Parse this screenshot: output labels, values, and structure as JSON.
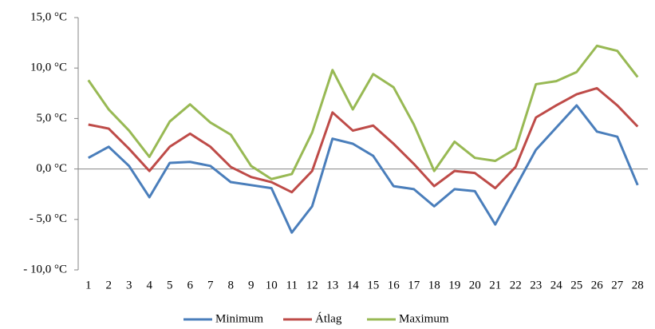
{
  "chart_data": {
    "type": "line",
    "categories": [
      "1",
      "2",
      "3",
      "4",
      "5",
      "6",
      "7",
      "8",
      "9",
      "10",
      "11",
      "12",
      "13",
      "14",
      "15",
      "16",
      "17",
      "18",
      "19",
      "20",
      "21",
      "22",
      "23",
      "24",
      "25",
      "26",
      "27",
      "28"
    ],
    "series": [
      {
        "name": "Minimum",
        "color": "#4a7ebb",
        "values": [
          1.1,
          2.2,
          0.3,
          -2.8,
          0.6,
          0.7,
          0.3,
          -1.3,
          -1.6,
          -1.9,
          -6.3,
          -3.7,
          3.0,
          2.5,
          1.3,
          -1.7,
          -2.0,
          -3.7,
          -2.0,
          -2.2,
          -5.5,
          -1.8,
          1.9,
          4.1,
          6.3,
          3.7,
          3.2,
          -1.6
        ]
      },
      {
        "name": "Átlag",
        "color": "#be4b48",
        "values": [
          4.4,
          4.0,
          2.0,
          -0.2,
          2.2,
          3.5,
          2.2,
          0.2,
          -0.8,
          -1.3,
          -2.3,
          -0.2,
          5.6,
          3.8,
          4.3,
          2.5,
          0.5,
          -1.7,
          -0.2,
          -0.4,
          -1.9,
          0.2,
          5.1,
          6.3,
          7.4,
          8.0,
          6.3,
          4.2
        ]
      },
      {
        "name": "Maximum",
        "color": "#98b954",
        "values": [
          8.8,
          5.9,
          3.8,
          1.2,
          4.7,
          6.4,
          4.6,
          3.4,
          0.3,
          -1.0,
          -0.5,
          3.6,
          9.8,
          5.9,
          9.4,
          8.1,
          4.4,
          -0.2,
          2.7,
          1.1,
          0.8,
          2.0,
          8.4,
          8.7,
          9.6,
          12.2,
          11.7,
          9.1
        ]
      }
    ],
    "ylim": [
      -10,
      15
    ],
    "yticks": [
      {
        "value": -10,
        "label": "- 10,0 °C"
      },
      {
        "value": -5,
        "label": "- 5,0 °C"
      },
      {
        "value": 0,
        "label": "0,0 °C"
      },
      {
        "value": 5,
        "label": "5,0 °C"
      },
      {
        "value": 10,
        "label": "10,0 °C"
      },
      {
        "value": 15,
        "label": "15,0 °C"
      }
    ],
    "legend": "bottom"
  }
}
